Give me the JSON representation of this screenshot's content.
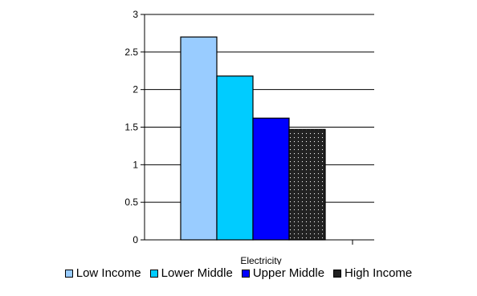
{
  "chart_data": {
    "type": "bar",
    "categories": [
      "Electricity"
    ],
    "series": [
      {
        "name": "Low Income",
        "values": [
          2.7
        ],
        "color": "#99ccff"
      },
      {
        "name": "Lower Middle",
        "values": [
          2.18
        ],
        "color": "#00ccff"
      },
      {
        "name": "Upper Middle",
        "values": [
          1.62
        ],
        "color": "#0000ff"
      },
      {
        "name": "High Income",
        "values": [
          1.47
        ],
        "color": "#222222",
        "pattern": "dotted"
      }
    ],
    "title": "",
    "xlabel": "",
    "ylabel": "",
    "ylim": [
      0,
      3
    ],
    "yticks": [
      "0",
      "0.5",
      "1",
      "1.5",
      "2",
      "2.5",
      "3"
    ],
    "grid": true,
    "legend_position": "bottom"
  }
}
